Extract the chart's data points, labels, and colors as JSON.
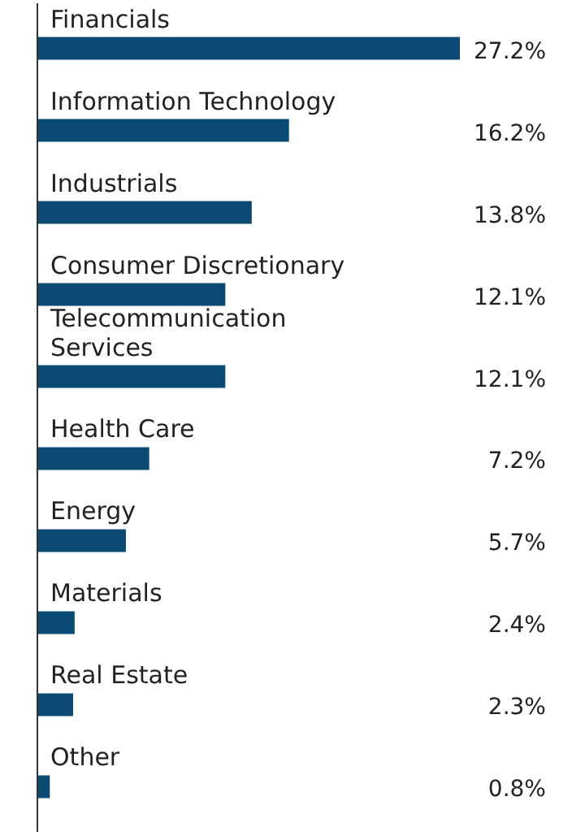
{
  "chart_data": {
    "type": "bar",
    "orientation": "horizontal",
    "tick_labels": "y",
    "categories": [
      "Financials",
      "Information Technology",
      "Industrials",
      "Consumer Discretionary",
      "Telecommunication Services",
      "Health Care",
      "Energy",
      "Materials",
      "Real Estate",
      "Other"
    ],
    "values": [
      27.2,
      16.2,
      13.8,
      12.1,
      12.1,
      7.2,
      5.7,
      2.4,
      2.3,
      0.8
    ],
    "value_labels": [
      "27.2%",
      "16.2%",
      "13.8%",
      "12.1%",
      "12.1%",
      "7.2%",
      "5.7%",
      "2.4%",
      "2.3%",
      "0.8%"
    ],
    "color": "#0b4a73"
  }
}
